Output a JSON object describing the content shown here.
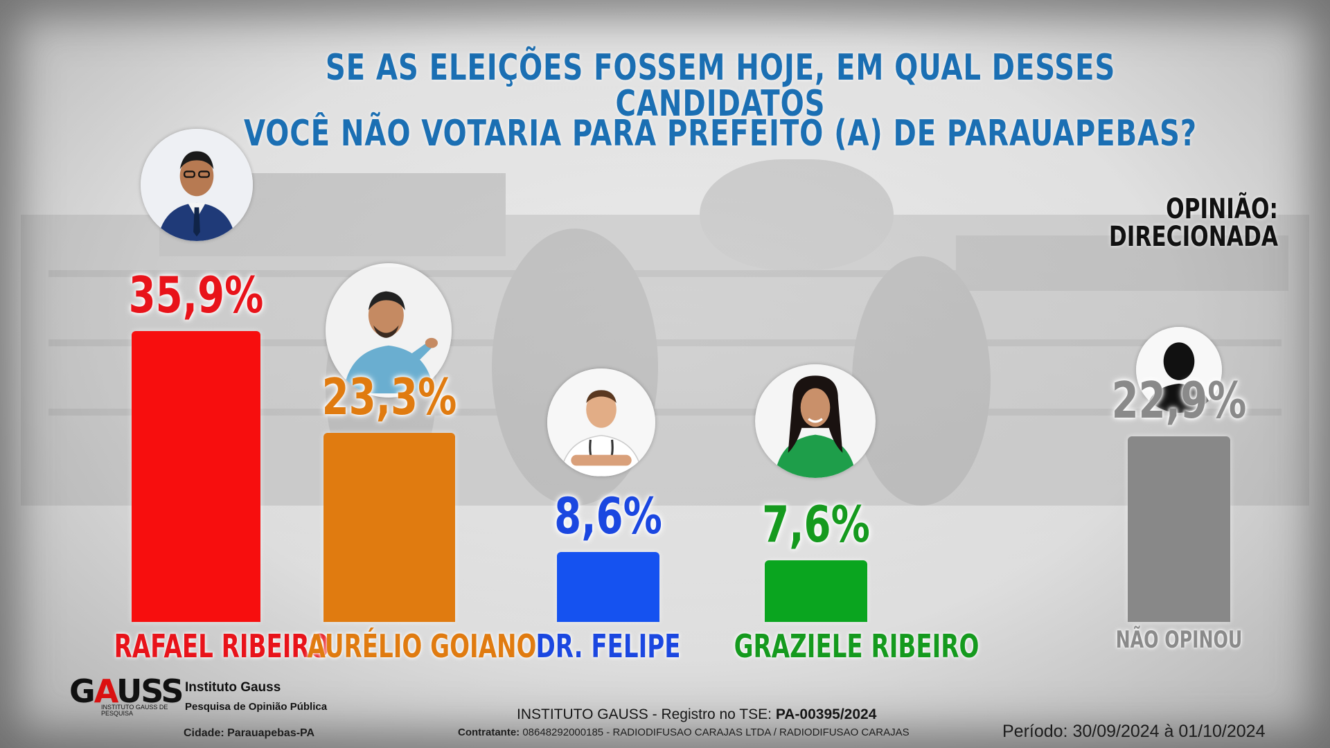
{
  "title": {
    "line1": "SE AS ELEIÇÕES FOSSEM HOJE, EM QUAL DESSES CANDIDATOS",
    "line2": "VOCÊ NÃO VOTARIA PARA PREFEITO (A) DE PARAUAPEBAS?"
  },
  "subtitle": "OPINIÃO: DIRECIONADA",
  "chart_data": {
    "type": "bar",
    "categories": [
      "RAFAEL RIBEIRO",
      "AURÉLIO GOIANO",
      "DR. FELIPE",
      "GRAZIELE RIBEIRO",
      "NÃO OPINOU"
    ],
    "values": [
      35.9,
      23.3,
      8.6,
      7.6,
      22.9
    ],
    "value_labels": [
      "35,9%",
      "23,3%",
      "8,6%",
      "7,6%",
      "22,9%"
    ],
    "colors": [
      "#f70e0e",
      "#e07b10",
      "#1552f0",
      "#0aa51f",
      "#888888"
    ],
    "label_colors": [
      "#e8131a",
      "#e07b10",
      "#1b47e0",
      "#159a1e",
      "#8a8a8a"
    ],
    "ylim": [
      0,
      40
    ],
    "grid": false,
    "legend": "none"
  },
  "footer": {
    "logo": "GAUSS",
    "logo_sub": "INSTITUTO GAUSS DE PESQUISA",
    "institute_name": "Instituto Gauss",
    "institute_desc": "Pesquisa de Opinião Pública",
    "city": "Cidade: Parauapebas-PA",
    "registro_prefix": "INSTITUTO GAUSS - Registro no TSE: ",
    "registro_code": "PA-00395/2024",
    "contratante_label": "Contratante:",
    "contratante_value": " 08648292000185 - RADIODIFUSAO CARAJAS LTDA / RADIODIFUSAO CARAJAS",
    "periodo": "Período: 30/09/2024 à 01/10/2024"
  }
}
